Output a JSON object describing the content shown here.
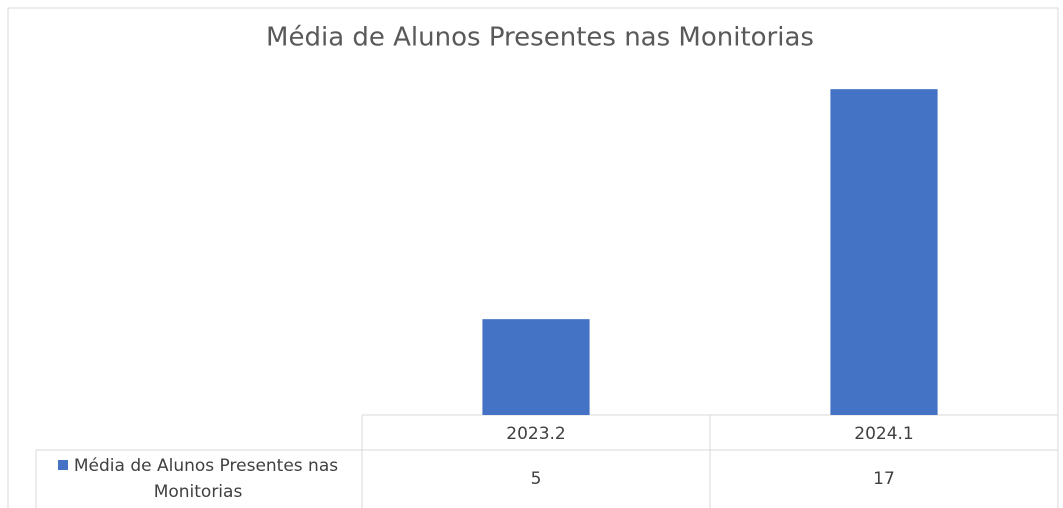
{
  "chart_data": {
    "type": "bar",
    "title": "Média de Alunos Presentes nas Monitorias",
    "categories": [
      "2023.2",
      "2024.1"
    ],
    "series": [
      {
        "name": "Média de Alunos Presentes nas Monitorias",
        "color": "#4472c4",
        "values": [
          5,
          17
        ]
      }
    ],
    "ylim": [
      0,
      18
    ],
    "grid": false,
    "data_table": true
  }
}
